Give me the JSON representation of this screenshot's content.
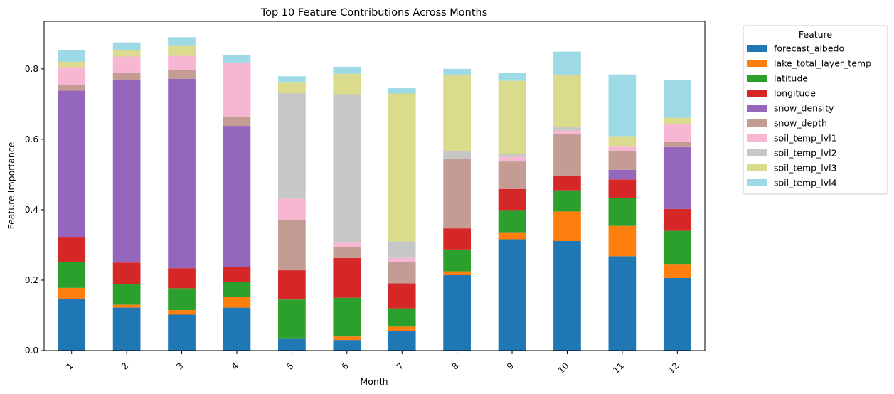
{
  "chart_data": {
    "type": "bar",
    "stacked": true,
    "title": "Top 10 Feature Contributions Across Months",
    "xlabel": "Month",
    "ylabel": "Feature Importance",
    "ylim": [
      0,
      0.935
    ],
    "yticks": [
      "0.0",
      "0.2",
      "0.4",
      "0.6",
      "0.8"
    ],
    "categories": [
      "1",
      "2",
      "3",
      "4",
      "5",
      "6",
      "7",
      "8",
      "9",
      "10",
      "11",
      "12"
    ],
    "legend": {
      "title": "Feature",
      "placement": "outside-upper-right"
    },
    "series": [
      {
        "name": "forecast_albedo",
        "color": "#1f77b4",
        "values": [
          0.146,
          0.122,
          0.102,
          0.122,
          0.035,
          0.03,
          0.056,
          0.215,
          0.316,
          0.311,
          0.268,
          0.206
        ]
      },
      {
        "name": "lake_total_layer_temp",
        "color": "#ff7f0e",
        "values": [
          0.032,
          0.008,
          0.013,
          0.03,
          0.0,
          0.01,
          0.012,
          0.01,
          0.02,
          0.084,
          0.086,
          0.04
        ]
      },
      {
        "name": "latitude",
        "color": "#2ca02c",
        "values": [
          0.073,
          0.058,
          0.062,
          0.043,
          0.11,
          0.11,
          0.052,
          0.062,
          0.063,
          0.06,
          0.08,
          0.094
        ]
      },
      {
        "name": "longitude",
        "color": "#d62728",
        "values": [
          0.072,
          0.062,
          0.057,
          0.043,
          0.083,
          0.113,
          0.071,
          0.06,
          0.06,
          0.042,
          0.052,
          0.062
        ]
      },
      {
        "name": "snow_density",
        "color": "#9467bd",
        "values": [
          0.415,
          0.518,
          0.538,
          0.4,
          0.0,
          0.0,
          0.0,
          0.0,
          0.0,
          0.0,
          0.027,
          0.178
        ]
      },
      {
        "name": "snow_depth",
        "color": "#c49c94",
        "values": [
          0.017,
          0.02,
          0.025,
          0.027,
          0.143,
          0.03,
          0.06,
          0.198,
          0.078,
          0.117,
          0.055,
          0.012
        ]
      },
      {
        "name": "soil_temp_lvl1",
        "color": "#f7b6d2",
        "values": [
          0.05,
          0.047,
          0.04,
          0.153,
          0.06,
          0.015,
          0.012,
          0.0,
          0.013,
          0.01,
          0.013,
          0.052
        ]
      },
      {
        "name": "soil_temp_lvl2",
        "color": "#c7c7c7",
        "values": [
          0.0,
          0.0,
          0.0,
          0.0,
          0.3,
          0.42,
          0.047,
          0.022,
          0.008,
          0.01,
          0.0,
          0.0
        ]
      },
      {
        "name": "soil_temp_lvl3",
        "color": "#dbdb8d",
        "values": [
          0.015,
          0.018,
          0.03,
          0.0,
          0.03,
          0.058,
          0.42,
          0.215,
          0.208,
          0.148,
          0.028,
          0.017
        ]
      },
      {
        "name": "soil_temp_lvl4",
        "color": "#9edae5",
        "values": [
          0.033,
          0.022,
          0.023,
          0.022,
          0.018,
          0.02,
          0.015,
          0.018,
          0.022,
          0.067,
          0.175,
          0.108
        ]
      }
    ]
  }
}
